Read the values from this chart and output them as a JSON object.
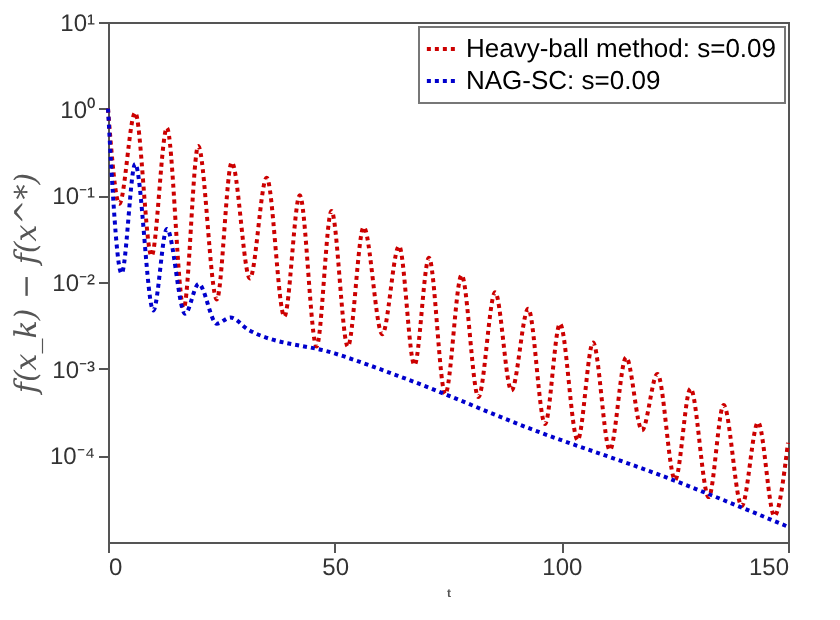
{
  "chart_data": {
    "type": "line",
    "xlabel": "t",
    "ylabel": "f(x_k) − f(x^*)",
    "log": "y",
    "xlim": [
      0,
      150
    ],
    "xticks": [
      0,
      50,
      100,
      150
    ],
    "ylim": [
      1e-05,
      10
    ],
    "yticks": [
      {
        "value": 10,
        "label": "10¹"
      },
      {
        "value": 1,
        "label": "10⁰"
      },
      {
        "value": 0.1,
        "label": "10⁻¹"
      },
      {
        "value": 0.01,
        "label": "10⁻²"
      },
      {
        "value": 0.001,
        "label": "10⁻³"
      },
      {
        "value": 0.0001,
        "label": "10⁻⁴"
      }
    ],
    "grid": false,
    "legend": "top right",
    "line_style": "dotted",
    "marker": "none",
    "series": [
      {
        "name": "Heavy-ball method: s=0.09",
        "color": "#cc0000",
        "x": [
          0,
          2.5,
          6,
          9.6,
          13,
          16.7,
          19.9,
          24,
          27.3,
          31.3,
          35,
          38.9,
          42.3,
          46,
          49.3,
          52.9,
          56.4,
          60.5,
          64.2,
          67.6,
          70.8,
          74.4,
          78,
          81.7,
          85.4,
          89,
          92.7,
          96.4,
          99.7,
          103.6,
          107,
          110.7,
          114.3,
          117.8,
          121.2,
          125.1,
          128.5,
          132.5,
          135.8,
          139.8,
          143.4,
          147,
          150
        ],
        "values": [
          1,
          0.08,
          0.9,
          0.02,
          0.6,
          0.005,
          0.37,
          0.0063,
          0.24,
          0.011,
          0.16,
          0.004,
          0.1,
          0.0018,
          0.066,
          0.0018,
          0.043,
          0.0025,
          0.026,
          0.0011,
          0.019,
          0.00051,
          0.012,
          0.00047,
          0.0076,
          0.00056,
          0.0049,
          0.00023,
          0.0033,
          0.00015,
          0.002,
          0.000115,
          0.00135,
          0.000195,
          0.00087,
          5.2e-05,
          0.00059,
          3.3e-05,
          0.00038,
          2.6e-05,
          0.00024,
          2e-05,
          0.00014
        ]
      },
      {
        "name": "NAG-SC: s=0.09",
        "color": "#0000cc",
        "x": [
          0,
          3,
          6,
          10,
          13,
          17,
          20,
          24,
          27,
          31,
          50,
          65,
          94,
          123,
          150
        ],
        "values": [
          1,
          0.0126,
          0.23,
          0.0047,
          0.041,
          0.0043,
          0.0095,
          0.0033,
          0.0039,
          0.0028,
          0.0015,
          0.00079,
          0.000195,
          5.6e-05,
          1.5e-05
        ]
      }
    ]
  }
}
